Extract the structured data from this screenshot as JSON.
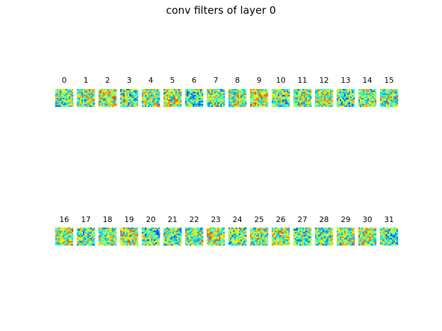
{
  "chart_data": {
    "type": "heatmap",
    "title": "conv filters of layer 0",
    "colormap": "jet-like (mostly cyan/green with blue and yellow/orange speckles)",
    "grid": {
      "rows": 2,
      "cols": 16
    },
    "panels": [
      {
        "label": "0"
      },
      {
        "label": "1"
      },
      {
        "label": "2"
      },
      {
        "label": "3"
      },
      {
        "label": "4"
      },
      {
        "label": "5"
      },
      {
        "label": "6"
      },
      {
        "label": "7"
      },
      {
        "label": "8"
      },
      {
        "label": "9"
      },
      {
        "label": "10"
      },
      {
        "label": "11"
      },
      {
        "label": "12"
      },
      {
        "label": "13"
      },
      {
        "label": "14"
      },
      {
        "label": "15"
      },
      {
        "label": "16"
      },
      {
        "label": "17"
      },
      {
        "label": "18"
      },
      {
        "label": "19"
      },
      {
        "label": "20"
      },
      {
        "label": "21"
      },
      {
        "label": "22"
      },
      {
        "label": "23"
      },
      {
        "label": "24"
      },
      {
        "label": "25"
      },
      {
        "label": "26"
      },
      {
        "label": "27"
      },
      {
        "label": "28"
      },
      {
        "label": "29"
      },
      {
        "label": "30"
      },
      {
        "label": "31"
      }
    ]
  }
}
